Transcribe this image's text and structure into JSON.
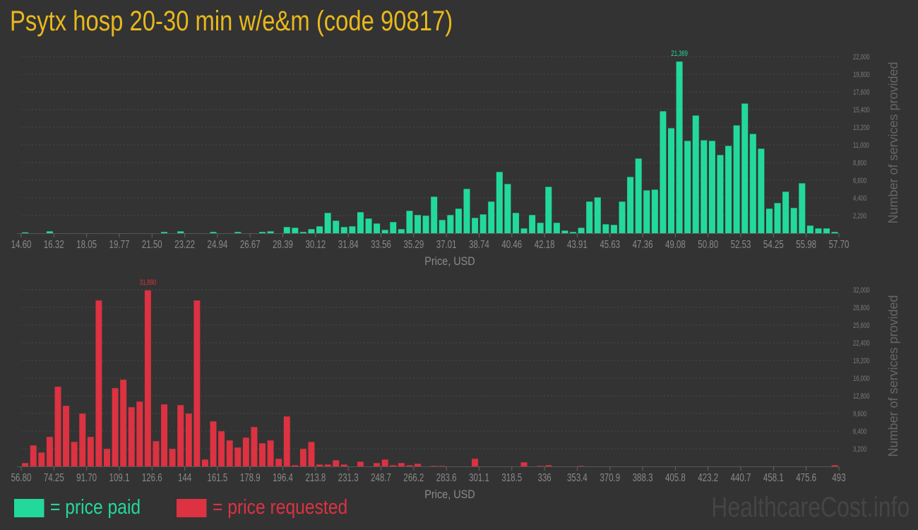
{
  "title": "Psytx hosp 20-30 min w/e&m (code 90817)",
  "legend": {
    "paid_label": "= price paid",
    "requested_label": "= price requested"
  },
  "watermark": "HealthcareCost.info",
  "colors": {
    "paid": "#22d99b",
    "requested": "#dc3241",
    "title": "#e9b81c",
    "background": "#333333"
  },
  "chart_data": [
    {
      "type": "bar",
      "name": "price paid",
      "xlabel": "Price, USD",
      "ylabel": "Number of services provided",
      "x_range": [
        14.6,
        57.7
      ],
      "ylim": [
        0,
        22000
      ],
      "grid": true,
      "peak_label": "21,369",
      "x_tick_labels": [
        "14.60",
        "16.32",
        "18.05",
        "19.77",
        "21.50",
        "23.22",
        "24.94",
        "26.67",
        "28.39",
        "30.12",
        "31.84",
        "33.56",
        "35.29",
        "37.01",
        "38.74",
        "40.46",
        "42.18",
        "43.91",
        "45.63",
        "47.36",
        "49.08",
        "50.80",
        "52.53",
        "54.25",
        "55.98",
        "57.70"
      ],
      "y_tick_labels": [
        "2,200",
        "4,400",
        "6,600",
        "8,800",
        "11,000",
        "13,200",
        "15,400",
        "17,600",
        "19,800",
        "22,000"
      ],
      "y_ticks": [
        2200,
        4400,
        6600,
        8800,
        11000,
        13200,
        15400,
        17600,
        19800,
        22000
      ],
      "values": [
        100,
        0,
        0,
        230,
        0,
        0,
        0,
        0,
        0,
        0,
        0,
        0,
        0,
        0,
        0,
        0,
        0,
        150,
        0,
        230,
        0,
        0,
        0,
        150,
        0,
        0,
        150,
        0,
        0,
        150,
        230,
        0,
        760,
        670,
        150,
        500,
        850,
        2520,
        1550,
        760,
        850,
        2610,
        1820,
        1200,
        410,
        1380,
        500,
        2780,
        2260,
        2170,
        4540,
        1640,
        2260,
        3050,
        5510,
        1900,
        2340,
        3930,
        7620,
        6120,
        2520,
        590,
        2260,
        1290,
        5770,
        1290,
        320,
        150,
        670,
        3930,
        4450,
        1110,
        1030,
        3930,
        7000,
        9290,
        5330,
        5420,
        15180,
        13070,
        21369,
        11490,
        14650,
        11570,
        11490,
        9730,
        10870,
        13420,
        16140,
        12360,
        10520,
        3050,
        3750,
        5160,
        3140,
        6210,
        940,
        590,
        590,
        150
      ]
    },
    {
      "type": "bar",
      "name": "price requested",
      "xlabel": "Price, USD",
      "ylabel": "Number of services provided",
      "x_range": [
        56.8,
        493
      ],
      "ylim": [
        0,
        32000
      ],
      "grid": true,
      "peak_label": "31,890",
      "x_tick_labels": [
        "56.80",
        "74.25",
        "91.70",
        "109.1",
        "126.6",
        "144",
        "161.5",
        "178.9",
        "196.4",
        "213.8",
        "231.3",
        "248.7",
        "266.2",
        "283.6",
        "301.1",
        "318.5",
        "336",
        "353.4",
        "370.9",
        "388.3",
        "405.8",
        "423.2",
        "440.7",
        "458.1",
        "475.6",
        "493"
      ],
      "y_tick_labels": [
        "3,200",
        "6,400",
        "9,600",
        "12,800",
        "16,000",
        "19,200",
        "22,400",
        "25,600",
        "28,800",
        "32,000"
      ],
      "y_ticks": [
        3200,
        6400,
        9600,
        12800,
        16000,
        19200,
        22400,
        25600,
        28800,
        32000
      ],
      "values": [
        600,
        3800,
        2520,
        5340,
        14430,
        10970,
        4440,
        9560,
        5340,
        30060,
        3160,
        14180,
        15710,
        10720,
        11740,
        31890,
        4570,
        11230,
        3160,
        11100,
        9560,
        30060,
        1240,
        8160,
        6360,
        4700,
        3420,
        5210,
        7130,
        4180,
        4700,
        1370,
        9050,
        210,
        3160,
        4440,
        340,
        340,
        1110,
        340,
        0,
        850,
        0,
        600,
        1240,
        210,
        600,
        210,
        470,
        0,
        85,
        85,
        0,
        0,
        0,
        1370,
        0,
        0,
        0,
        0,
        0,
        730,
        0,
        85,
        210,
        0,
        0,
        0,
        85,
        0,
        0,
        0,
        0,
        0,
        0,
        0,
        0,
        0,
        0,
        0,
        0,
        0,
        0,
        0,
        0,
        0,
        0,
        0,
        0,
        0,
        0,
        0,
        0,
        0,
        0,
        0,
        0,
        0,
        0,
        210
      ]
    }
  ]
}
